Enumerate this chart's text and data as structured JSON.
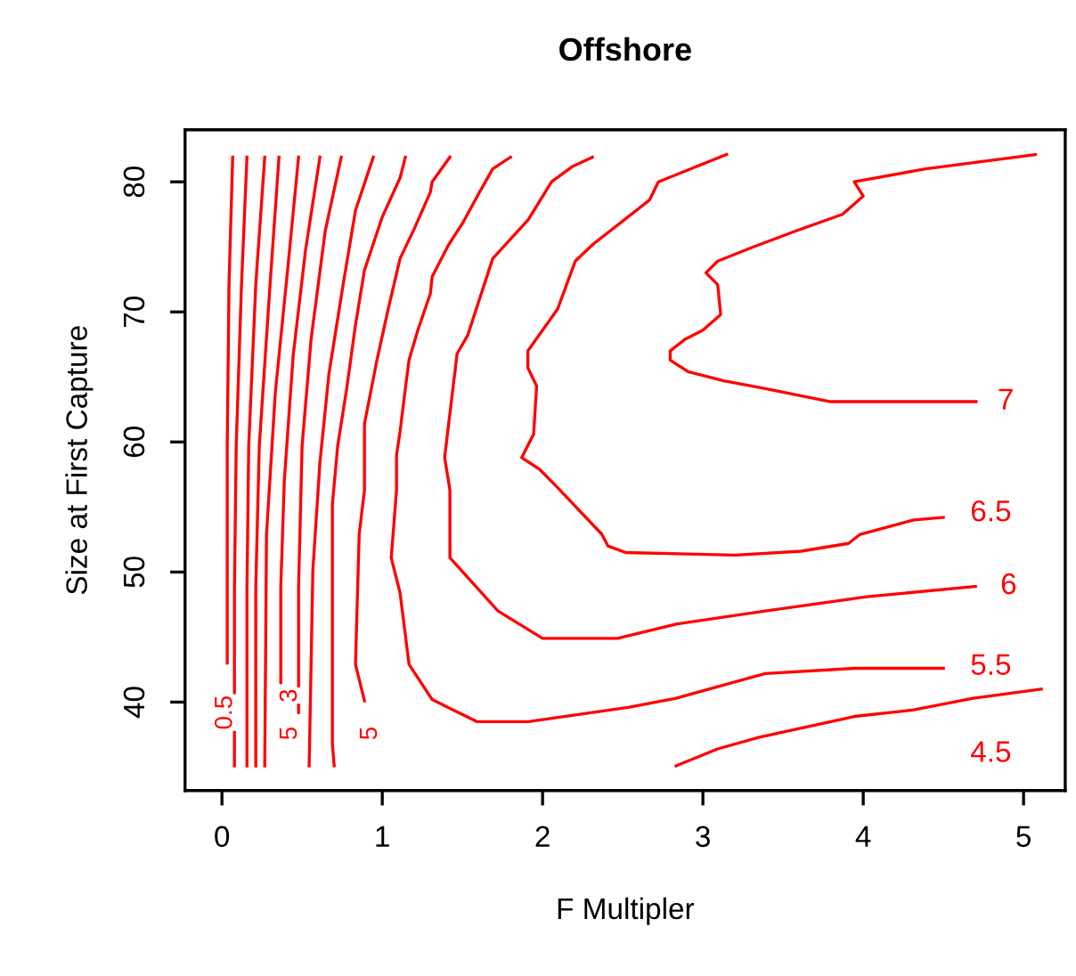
{
  "chart_data": {
    "type": "line",
    "title": "Offshore",
    "xlabel": "F Multipler",
    "ylabel": "Size at First Capture",
    "xlim": [
      -0.23,
      5.26
    ],
    "ylim": [
      33.2,
      84
    ],
    "xticks": [
      0,
      1,
      2,
      3,
      4,
      5
    ],
    "yticks": [
      40,
      50,
      60,
      70,
      80
    ],
    "grid": false,
    "legend": false,
    "marker": "none",
    "line_style": "solid",
    "series": [
      {
        "color": "#ff0000",
        "x": [
          0.067,
          0.044,
          0.033,
          0.033
        ],
        "values": [
          81.9,
          72.1,
          59.7,
          43.0
        ]
      },
      {
        "color": "#ff0000",
        "x": [
          0.156,
          0.122,
          0.089,
          0.078,
          0.078
        ],
        "values": [
          81.9,
          72.1,
          59.7,
          48.8,
          35.1
        ]
      },
      {
        "color": "#ff0000",
        "x": [
          0.267,
          0.211,
          0.167,
          0.156,
          0.156
        ],
        "values": [
          81.9,
          72.1,
          59.7,
          48.8,
          35.1
        ]
      },
      {
        "color": "#ff0000",
        "x": [
          0.356,
          0.3,
          0.233,
          0.211,
          0.211
        ],
        "values": [
          81.9,
          72.1,
          59.7,
          48.8,
          35.1
        ]
      },
      {
        "color": "#ff0000",
        "x": [
          0.478,
          0.411,
          0.333,
          0.278,
          0.267
        ],
        "values": [
          81.9,
          73.4,
          63.8,
          52.9,
          35.1
        ]
      },
      {
        "color": "#ff0000",
        "x": [
          0.611,
          0.522,
          0.444,
          0.389,
          0.367,
          0.367
        ],
        "values": [
          81.9,
          74.8,
          66.6,
          57.0,
          48.8,
          41.5
        ]
      },
      {
        "color": "#ff0000",
        "x": [
          0.744,
          0.644,
          0.556,
          0.5,
          0.478,
          0.478
        ],
        "values": [
          81.9,
          76.2,
          67.9,
          59.7,
          48.8,
          39.2
        ]
      },
      {
        "color": "#ff0000",
        "x": [
          0.944,
          0.833,
          0.756,
          0.667,
          0.611,
          0.567,
          0.544
        ],
        "values": [
          81.9,
          77.8,
          72.1,
          65.2,
          58.4,
          50.1,
          35.1
        ]
      },
      {
        "color": "#ff0000",
        "x": [
          1.144,
          1.111,
          1.0,
          0.889,
          0.833,
          0.778,
          0.722,
          0.689,
          0.689,
          0.7
        ],
        "values": [
          81.9,
          80.3,
          77.3,
          73.2,
          69.0,
          64.1,
          59.7,
          55.2,
          36.8,
          35.1
        ]
      },
      {
        "color": "#ff0000",
        "x": [
          1.422,
          1.311,
          1.3,
          1.2,
          1.111,
          1.033,
          0.967,
          0.889,
          0.889,
          0.856,
          0.833,
          0.889
        ],
        "values": [
          81.9,
          80.0,
          79.2,
          76.4,
          74.1,
          70.0,
          66.3,
          61.4,
          56.3,
          52.9,
          42.9,
          40.1
        ]
      },
      {
        "color": "#ff0000",
        "x": [
          1.8,
          1.689,
          1.611,
          1.5,
          1.411,
          1.311,
          1.3,
          1.222,
          1.167,
          1.144,
          1.111,
          1.089,
          1.089,
          1.056,
          1.111,
          1.167,
          1.311,
          1.589,
          1.911,
          2.533,
          2.833,
          3.389,
          3.944,
          4.5
        ],
        "values": [
          81.9,
          81.0,
          79.3,
          76.8,
          75.1,
          72.7,
          71.4,
          68.6,
          66.3,
          64.1,
          60.8,
          59.0,
          56.3,
          51.1,
          48.4,
          42.9,
          40.2,
          38.5,
          38.5,
          39.6,
          40.3,
          42.2,
          42.6,
          42.6
        ]
      },
      {
        "color": "#ff0000",
        "x": [
          2.311,
          2.189,
          2.056,
          1.911,
          1.689,
          1.533,
          1.467,
          1.422,
          1.389,
          1.422,
          1.422,
          1.722,
          2.0,
          2.467,
          2.833,
          3.389,
          4.022,
          4.7
        ],
        "values": [
          81.9,
          81.2,
          80.0,
          77.1,
          74.1,
          68.2,
          66.8,
          62.2,
          58.8,
          56.3,
          51.1,
          47.0,
          44.9,
          44.9,
          46.0,
          47.0,
          48.1,
          48.9
        ]
      },
      {
        "color": "#ff0000",
        "x": [
          3.148,
          2.722,
          2.667,
          2.315,
          2.204,
          2.093,
          1.908,
          1.908,
          1.963,
          1.944,
          1.87,
          1.981,
          2.093,
          2.37,
          2.408,
          2.519,
          3.204,
          3.611,
          3.908,
          3.981,
          4.315,
          4.5
        ],
        "values": [
          82.1,
          80.0,
          78.6,
          75.2,
          73.9,
          70.2,
          67.0,
          65.7,
          64.3,
          60.6,
          58.8,
          57.9,
          56.5,
          52.9,
          52.0,
          51.5,
          51.3,
          51.6,
          52.2,
          52.9,
          54.0,
          54.2
        ]
      },
      {
        "color": "#ff0000",
        "x": [
          5.074,
          4.389,
          3.944,
          4.0,
          3.87,
          3.574,
          3.315,
          3.092,
          3.019,
          3.092,
          3.111,
          3.0,
          2.889,
          2.796,
          2.796,
          2.907,
          3.13,
          3.389,
          3.796,
          4.704
        ],
        "values": [
          82.1,
          81.0,
          80.0,
          78.9,
          77.5,
          76.2,
          75.0,
          73.9,
          73.0,
          72.1,
          69.8,
          68.6,
          67.9,
          67.0,
          66.3,
          65.4,
          64.7,
          64.1,
          63.1,
          63.1
        ]
      },
      {
        "color": "#ff0000",
        "x": [
          2.833,
          3.092,
          3.352,
          3.722,
          3.944,
          4.315,
          4.685,
          5.111
        ],
        "values": [
          35.1,
          36.4,
          37.3,
          38.3,
          38.9,
          39.4,
          40.3,
          41.0
        ]
      }
    ],
    "annotations": [
      {
        "text": "7",
        "x": 4.889,
        "y": 63.1
      },
      {
        "text": "6.5",
        "x": 4.796,
        "y": 54.5
      },
      {
        "text": "6",
        "x": 4.907,
        "y": 48.9
      },
      {
        "text": "5.5",
        "x": 4.796,
        "y": 42.7
      },
      {
        "text": "4.5",
        "x": 4.796,
        "y": 36.0
      },
      {
        "text": "0.5",
        "x": 0.022,
        "y": 39.2
      },
      {
        "text": "3",
        "x": 0.426,
        "y": 40.5
      },
      {
        "text": "5",
        "x": 0.426,
        "y": 37.6
      },
      {
        "text": "5",
        "x": 0.926,
        "y": 37.6
      }
    ]
  }
}
